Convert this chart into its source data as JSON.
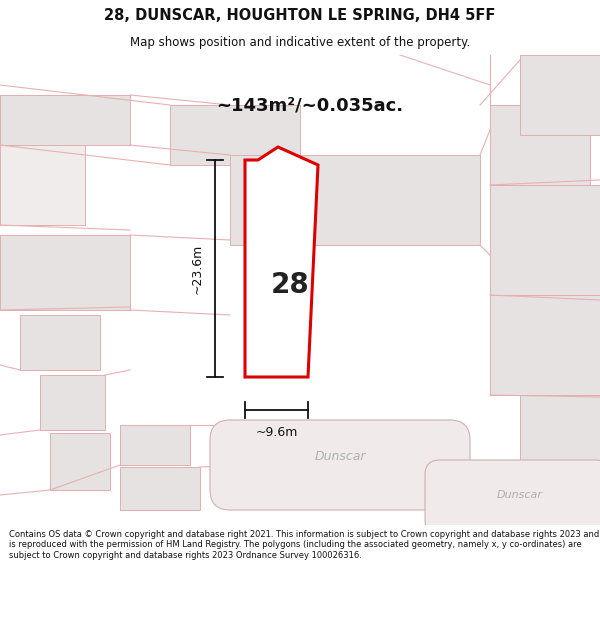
{
  "title_line1": "28, DUNSCAR, HOUGHTON LE SPRING, DH4 5FF",
  "title_line2": "Map shows position and indicative extent of the property.",
  "area_text": "~143m²/~0.035ac.",
  "label_number": "28",
  "dim_height": "~23.6m",
  "dim_width": "~9.6m",
  "street_label1": "Dunscar",
  "street_label2": "Dunscar",
  "footer_text": "Contains OS data © Crown copyright and database right 2021. This information is subject to Crown copyright and database rights 2023 and is reproduced with the permission of HM Land Registry. The polygons (including the associated geometry, namely x, y co-ordinates) are subject to Crown copyright and database rights 2023 Ordnance Survey 100026316.",
  "bg_color": "#ffffff",
  "map_bg": "#f7f2f2",
  "plot_outline_color": "#dd0000",
  "plot_fill_color": "#ffffff",
  "building_fill": "#e6e2e2",
  "building_edge": "#e0b0b0",
  "road_fill": "#f7f2f2",
  "road_edge": "#d0b0b0",
  "street_label_color": "#b0b0b0",
  "pink_line": "#e8b0b0",
  "dim_line_color": "#111111",
  "title_color": "#111111",
  "footer_color": "#111111"
}
